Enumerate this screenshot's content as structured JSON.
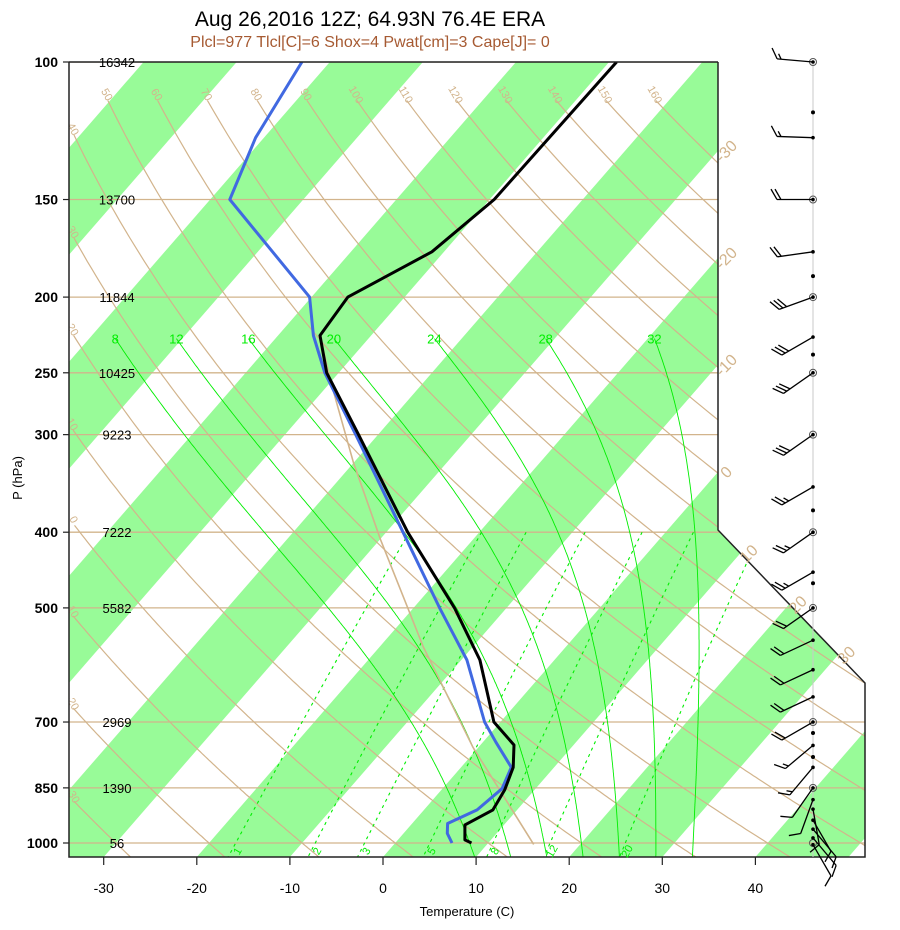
{
  "chart_data": {
    "type": "skew-t",
    "title": "Aug 26,2016 12Z; 64.93N 76.4E ERA",
    "subtitle": "Plcl=977 Tlcl[C]=6 Shox=4 Pwat[cm]=3 Cape[J]= 0",
    "xlabel": "Temperature (C)",
    "ylabel": "P (hPa)",
    "xlim": [
      -33.8,
      51.7
    ],
    "ylim": [
      1050,
      100
    ],
    "y_scale": "log",
    "xticks": [
      -30,
      -20,
      -10,
      0,
      10,
      20,
      30,
      40
    ],
    "pressure_levels": [
      100,
      150,
      200,
      250,
      300,
      400,
      500,
      700,
      850,
      1000
    ],
    "heights_m": [
      "16342",
      "13700",
      "11844",
      "10425",
      "9223",
      "7222",
      "5582",
      "2969",
      "1390",
      "56"
    ],
    "isotherm_labels": [
      -30,
      -20,
      -10,
      0,
      10,
      20,
      30
    ],
    "dry_adiabats_C": [
      -30,
      -20,
      -10,
      0,
      10,
      20,
      30,
      40,
      50,
      60,
      70,
      80,
      90,
      100,
      110,
      120,
      130,
      140,
      150,
      160
    ],
    "moist_adiabats_C": [
      8,
      12,
      16,
      20,
      24,
      28,
      32
    ],
    "mixing_ratios_gkg": [
      1,
      2,
      3,
      5,
      8,
      12,
      20
    ],
    "temperature": {
      "p": [
        100,
        150,
        175,
        200,
        224,
        250,
        300,
        400,
        500,
        583,
        700,
        749,
        800,
        855,
        907,
        948,
        991,
        1000
      ],
      "t": [
        -49.2,
        -49.5,
        -51.3,
        -56.1,
        -55.5,
        -51.3,
        -42.1,
        -27.7,
        -15.6,
        -8.0,
        -0.7,
        3.6,
        5.6,
        6.8,
        7.4,
        5.8,
        7.2,
        8.2
      ]
    },
    "dewpoint": {
      "p": [
        100,
        125,
        150,
        200,
        224,
        250,
        300,
        400,
        500,
        583,
        700,
        743,
        800,
        852,
        907,
        944,
        972,
        1000
      ],
      "t": [
        -83.0,
        -80.9,
        -77.9,
        -60.2,
        -56.2,
        -51.5,
        -42.4,
        -28.2,
        -17.2,
        -9.4,
        -1.7,
        1.4,
        5.4,
        6.4,
        5.7,
        3.8,
        4.7,
        6.1
      ]
    },
    "parcel": {
      "p": [
        1004,
        754,
        561,
        409,
        326,
        255,
        224
      ],
      "t": [
        15.0,
        -0.6,
        -15.3,
        -29.9,
        -40.0,
        -50.3,
        -55.5
      ]
    },
    "winds": [
      {
        "p": 100,
        "dir": 275,
        "spd": 15
      },
      {
        "p": 125,
        "dir": 272,
        "spd": 15
      },
      {
        "p": 150,
        "dir": 270,
        "spd": 20
      },
      {
        "p": 175,
        "dir": 262,
        "spd": 20
      },
      {
        "p": 200,
        "dir": 250,
        "spd": 30
      },
      {
        "p": 225,
        "dir": 240,
        "spd": 30
      },
      {
        "p": 250,
        "dir": 235,
        "spd": 30
      },
      {
        "p": 300,
        "dir": 235,
        "spd": 30
      },
      {
        "p": 350,
        "dir": 240,
        "spd": 25
      },
      {
        "p": 400,
        "dir": 235,
        "spd": 25
      },
      {
        "p": 450,
        "dir": 240,
        "spd": 25
      },
      {
        "p": 500,
        "dir": 235,
        "spd": 20
      },
      {
        "p": 550,
        "dir": 245,
        "spd": 20
      },
      {
        "p": 600,
        "dir": 245,
        "spd": 20
      },
      {
        "p": 650,
        "dir": 245,
        "spd": 20
      },
      {
        "p": 700,
        "dir": 240,
        "spd": 20
      },
      {
        "p": 750,
        "dir": 230,
        "spd": 15
      },
      {
        "p": 800,
        "dir": 220,
        "spd": 15
      },
      {
        "p": 850,
        "dir": 215,
        "spd": 10
      },
      {
        "p": 880,
        "dir": 200,
        "spd": 10
      },
      {
        "p": 905,
        "dir": 170,
        "spd": 10
      },
      {
        "p": 935,
        "dir": 150,
        "spd": 10
      },
      {
        "p": 960,
        "dir": 140,
        "spd": 10
      },
      {
        "p": 985,
        "dir": 140,
        "spd": 10
      },
      {
        "p": 1005,
        "dir": 150,
        "spd": 10
      }
    ],
    "wind_dots_p": [
      116,
      188,
      237,
      375,
      465,
      723,
      776
    ],
    "colors": {
      "temperature": "#000000",
      "dewpoint": "#4169e1",
      "bands": "#98fb98",
      "tan": "#d2b48c",
      "moist": "#00ee00",
      "subtitle": "#a65a32"
    }
  }
}
